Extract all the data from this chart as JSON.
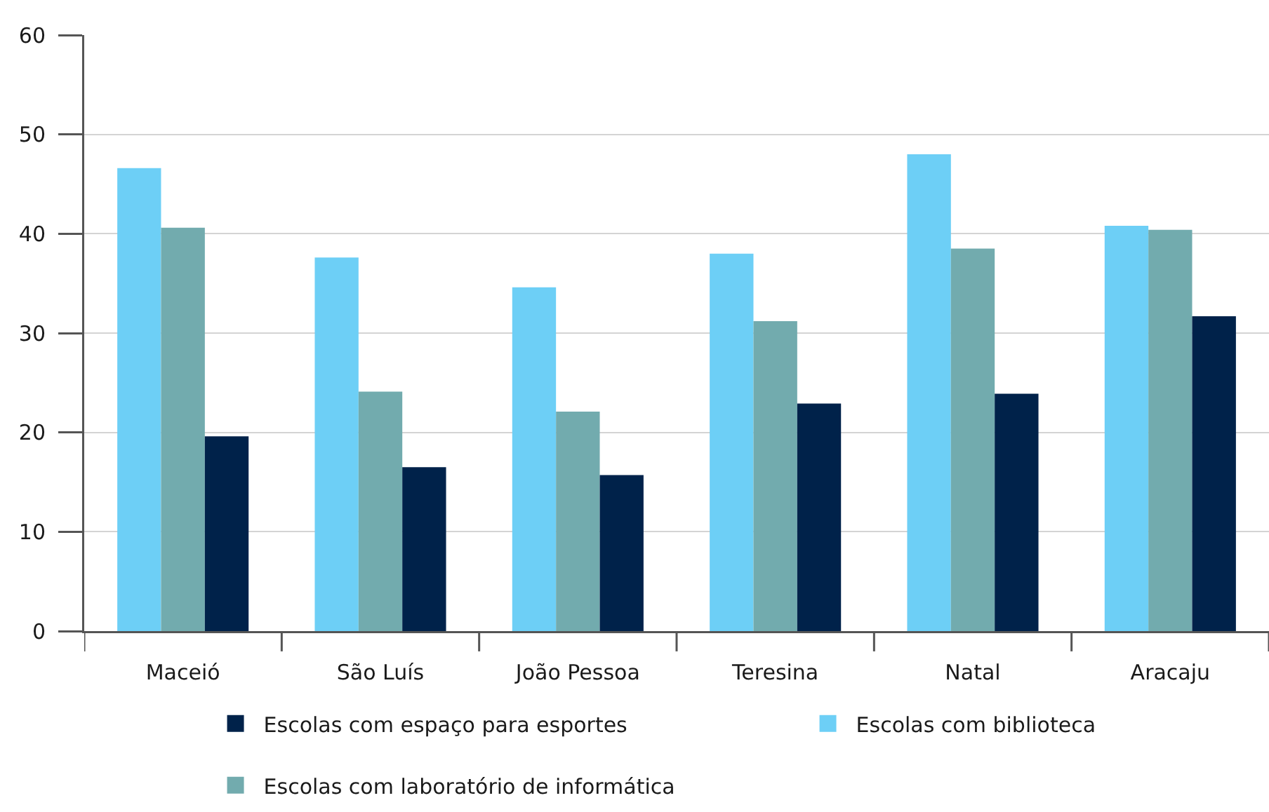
{
  "chart_data": {
    "type": "bar",
    "categories": [
      "Maceió",
      "São Luís",
      "João Pessoa",
      "Teresina",
      "Natal",
      "Aracaju"
    ],
    "series": [
      {
        "name": "Escolas com biblioteca",
        "color": "#6dcff6",
        "values": [
          46.6,
          37.6,
          34.6,
          38.0,
          48.0,
          40.8
        ]
      },
      {
        "name": "Escolas com laboratório de informática",
        "color": "#72abae",
        "values": [
          40.6,
          24.1,
          22.1,
          31.2,
          38.5,
          40.4
        ]
      },
      {
        "name": "Escolas com espaço para esportes",
        "color": "#00224a",
        "values": [
          19.6,
          16.5,
          15.7,
          22.9,
          23.9,
          31.7
        ]
      }
    ],
    "ylim": [
      0,
      60
    ],
    "yticks": [
      0,
      10,
      20,
      30,
      40,
      50,
      60
    ],
    "grid": "y",
    "legend": "bottom"
  }
}
